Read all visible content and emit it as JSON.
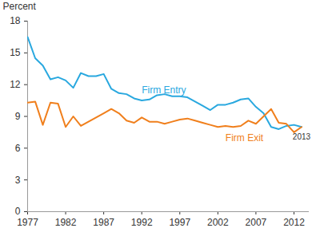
{
  "chart_data": {
    "type": "line",
    "ylabel": "Percent",
    "x": [
      1977,
      1978,
      1979,
      1980,
      1981,
      1982,
      1983,
      1984,
      1985,
      1986,
      1987,
      1988,
      1989,
      1990,
      1991,
      1992,
      1993,
      1994,
      1995,
      1996,
      1997,
      1998,
      1999,
      2000,
      2001,
      2002,
      2003,
      2004,
      2005,
      2006,
      2007,
      2008,
      2009,
      2010,
      2011,
      2012,
      2013
    ],
    "series": [
      {
        "name": "Firm Entry",
        "color": "#29a8df",
        "values": [
          16.5,
          14.5,
          13.8,
          12.5,
          12.7,
          12.4,
          11.7,
          13.1,
          12.8,
          12.8,
          13.0,
          11.6,
          11.2,
          11.1,
          10.7,
          10.5,
          10.6,
          11.0,
          11.1,
          10.9,
          10.9,
          10.8,
          10.4,
          10.0,
          9.6,
          10.1,
          10.1,
          10.3,
          10.6,
          10.7,
          9.9,
          9.3,
          8.0,
          7.8,
          8.1,
          8.2,
          8.0
        ]
      },
      {
        "name": "Firm Exit",
        "color": "#f07f1c",
        "values": [
          10.3,
          10.4,
          8.2,
          10.3,
          10.2,
          8.0,
          9.0,
          8.1,
          8.5,
          8.9,
          9.3,
          9.7,
          9.3,
          8.6,
          8.4,
          8.9,
          8.5,
          8.5,
          8.3,
          8.5,
          8.7,
          8.8,
          8.6,
          8.4,
          8.2,
          8.0,
          8.1,
          8.0,
          8.1,
          8.6,
          8.3,
          9.0,
          9.7,
          8.4,
          8.3,
          7.5,
          8.0
        ]
      }
    ],
    "xlim": [
      1977,
      2014
    ],
    "xticks": [
      1977,
      1982,
      1987,
      1992,
      1997,
      2002,
      2007,
      2012
    ],
    "ylim": [
      0,
      18
    ],
    "yticks": [
      0,
      3,
      6,
      9,
      12,
      15,
      18
    ],
    "annotations": [
      {
        "text": "2013",
        "x": 2013,
        "y": 8.0
      }
    ]
  }
}
